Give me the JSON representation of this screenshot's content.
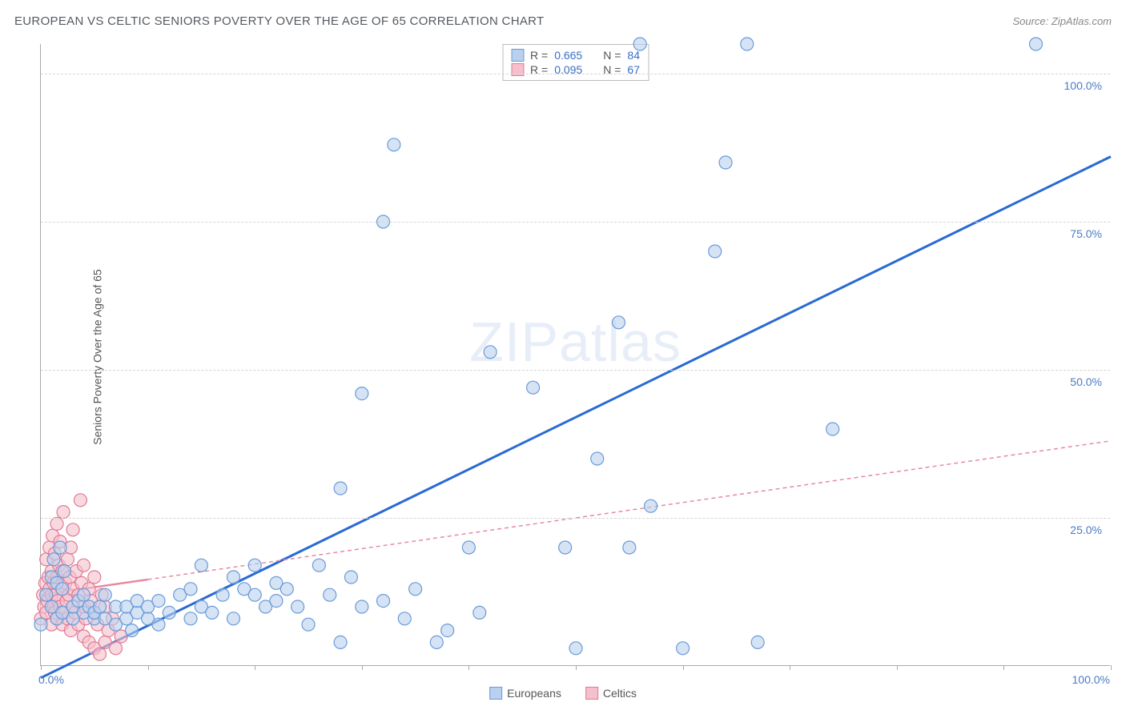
{
  "header": {
    "title": "EUROPEAN VS CELTIC SENIORS POVERTY OVER THE AGE OF 65 CORRELATION CHART",
    "source": "Source: ZipAtlas.com"
  },
  "chart": {
    "type": "scatter",
    "ylabel": "Seniors Poverty Over the Age of 65",
    "watermark_bold": "ZIP",
    "watermark_light": "atlas",
    "xlim": [
      0,
      100
    ],
    "ylim": [
      0,
      105
    ],
    "x_axis_label_left": "0.0%",
    "x_axis_label_right": "100.0%",
    "ytick_labels": [
      "25.0%",
      "50.0%",
      "75.0%",
      "100.0%"
    ],
    "ytick_values": [
      25,
      50,
      75,
      100
    ],
    "xtick_positions": [
      0,
      10,
      20,
      30,
      40,
      50,
      60,
      70,
      80,
      90,
      100
    ],
    "background_color": "#ffffff",
    "grid_color": "#d5d5d5",
    "axis_color": "#aaaaaa",
    "marker_radius": 8,
    "marker_stroke_width": 1.2,
    "series": [
      {
        "name": "Europeans",
        "fill": "#b9d0ee",
        "stroke": "#6a9bd8",
        "fill_opacity": 0.6,
        "R": "0.665",
        "N": "84",
        "trend": {
          "x1": 0,
          "y1": -2,
          "x2": 100,
          "y2": 86,
          "stroke": "#2a6ad4",
          "width": 3,
          "dash": ""
        },
        "points": [
          [
            0,
            7
          ],
          [
            0.5,
            12
          ],
          [
            1,
            10
          ],
          [
            1,
            15
          ],
          [
            1.2,
            18
          ],
          [
            1.5,
            8
          ],
          [
            1.5,
            14
          ],
          [
            1.8,
            20
          ],
          [
            2,
            9
          ],
          [
            2,
            13
          ],
          [
            2.2,
            16
          ],
          [
            3,
            8
          ],
          [
            3,
            10
          ],
          [
            3.5,
            11
          ],
          [
            4,
            9
          ],
          [
            4,
            12
          ],
          [
            4.5,
            10
          ],
          [
            5,
            8
          ],
          [
            5,
            9
          ],
          [
            5.5,
            10
          ],
          [
            6,
            8
          ],
          [
            6,
            12
          ],
          [
            7,
            7
          ],
          [
            7,
            10
          ],
          [
            8,
            8
          ],
          [
            8,
            10
          ],
          [
            8.5,
            6
          ],
          [
            9,
            9
          ],
          [
            9,
            11
          ],
          [
            10,
            8
          ],
          [
            10,
            10
          ],
          [
            11,
            7
          ],
          [
            11,
            11
          ],
          [
            12,
            9
          ],
          [
            13,
            12
          ],
          [
            14,
            8
          ],
          [
            14,
            13
          ],
          [
            15,
            10
          ],
          [
            15,
            17
          ],
          [
            16,
            9
          ],
          [
            17,
            12
          ],
          [
            18,
            15
          ],
          [
            18,
            8
          ],
          [
            19,
            13
          ],
          [
            20,
            12
          ],
          [
            20,
            17
          ],
          [
            21,
            10
          ],
          [
            22,
            11
          ],
          [
            22,
            14
          ],
          [
            23,
            13
          ],
          [
            24,
            10
          ],
          [
            25,
            7
          ],
          [
            26,
            17
          ],
          [
            27,
            12
          ],
          [
            28,
            4
          ],
          [
            28,
            30
          ],
          [
            29,
            15
          ],
          [
            30,
            10
          ],
          [
            30,
            46
          ],
          [
            32,
            11
          ],
          [
            32,
            75
          ],
          [
            33,
            88
          ],
          [
            34,
            8
          ],
          [
            35,
            13
          ],
          [
            37,
            4
          ],
          [
            38,
            6
          ],
          [
            40,
            20
          ],
          [
            41,
            9
          ],
          [
            42,
            53
          ],
          [
            46,
            47
          ],
          [
            49,
            20
          ],
          [
            50,
            3
          ],
          [
            52,
            35
          ],
          [
            54,
            58
          ],
          [
            55,
            20
          ],
          [
            56,
            105
          ],
          [
            57,
            27
          ],
          [
            60,
            3
          ],
          [
            63,
            70
          ],
          [
            64,
            85
          ],
          [
            66,
            105
          ],
          [
            67,
            4
          ],
          [
            74,
            40
          ],
          [
            93,
            105
          ]
        ]
      },
      {
        "name": "Celtics",
        "fill": "#f5c0cc",
        "stroke": "#e07a95",
        "fill_opacity": 0.6,
        "R": "0.095",
        "N": "67",
        "trend": {
          "x1": 0,
          "y1": 12,
          "x2": 100,
          "y2": 38,
          "stroke": "#e78aa0",
          "width": 1.5,
          "dash": "5,4"
        },
        "trend_solid_end": 10,
        "points": [
          [
            0,
            8
          ],
          [
            0.2,
            12
          ],
          [
            0.3,
            10
          ],
          [
            0.4,
            14
          ],
          [
            0.5,
            9
          ],
          [
            0.5,
            18
          ],
          [
            0.6,
            11
          ],
          [
            0.7,
            15
          ],
          [
            0.8,
            13
          ],
          [
            0.8,
            20
          ],
          [
            1,
            7
          ],
          [
            1,
            12
          ],
          [
            1,
            16
          ],
          [
            1.1,
            22
          ],
          [
            1.2,
            10
          ],
          [
            1.2,
            14
          ],
          [
            1.3,
            9
          ],
          [
            1.3,
            19
          ],
          [
            1.4,
            12
          ],
          [
            1.5,
            8
          ],
          [
            1.5,
            15
          ],
          [
            1.5,
            24
          ],
          [
            1.6,
            11
          ],
          [
            1.7,
            17
          ],
          [
            1.8,
            10
          ],
          [
            1.8,
            21
          ],
          [
            2,
            7
          ],
          [
            2,
            13
          ],
          [
            2,
            16
          ],
          [
            2.1,
            26
          ],
          [
            2.2,
            9
          ],
          [
            2.3,
            14
          ],
          [
            2.4,
            11
          ],
          [
            2.5,
            8
          ],
          [
            2.5,
            18
          ],
          [
            2.6,
            12
          ],
          [
            2.7,
            15
          ],
          [
            2.8,
            6
          ],
          [
            2.8,
            20
          ],
          [
            3,
            10
          ],
          [
            3,
            13
          ],
          [
            3,
            23
          ],
          [
            3.2,
            9
          ],
          [
            3.3,
            16
          ],
          [
            3.5,
            7
          ],
          [
            3.5,
            12
          ],
          [
            3.7,
            28
          ],
          [
            3.8,
            14
          ],
          [
            4,
            5
          ],
          [
            4,
            10
          ],
          [
            4,
            17
          ],
          [
            4.2,
            8
          ],
          [
            4.5,
            4
          ],
          [
            4.5,
            13
          ],
          [
            4.7,
            11
          ],
          [
            5,
            3
          ],
          [
            5,
            9
          ],
          [
            5,
            15
          ],
          [
            5.3,
            7
          ],
          [
            5.5,
            2
          ],
          [
            5.7,
            12
          ],
          [
            6,
            4
          ],
          [
            6,
            10
          ],
          [
            6.3,
            6
          ],
          [
            6.7,
            8
          ],
          [
            7,
            3
          ],
          [
            7.5,
            5
          ]
        ]
      }
    ]
  },
  "stats_box": {
    "rows": [
      {
        "swatch_fill": "#b9d0ee",
        "swatch_stroke": "#6a9bd8",
        "r_label": "R =",
        "r_val": "0.665",
        "n_label": "N =",
        "n_val": "84"
      },
      {
        "swatch_fill": "#f5c0cc",
        "swatch_stroke": "#e07a95",
        "r_label": "R =",
        "r_val": "0.095",
        "n_label": "N =",
        "n_val": "67"
      }
    ]
  },
  "legend": {
    "items": [
      {
        "label": "Europeans",
        "fill": "#b9d0ee",
        "stroke": "#6a9bd8"
      },
      {
        "label": "Celtics",
        "fill": "#f5c0cc",
        "stroke": "#e07a95"
      }
    ]
  }
}
